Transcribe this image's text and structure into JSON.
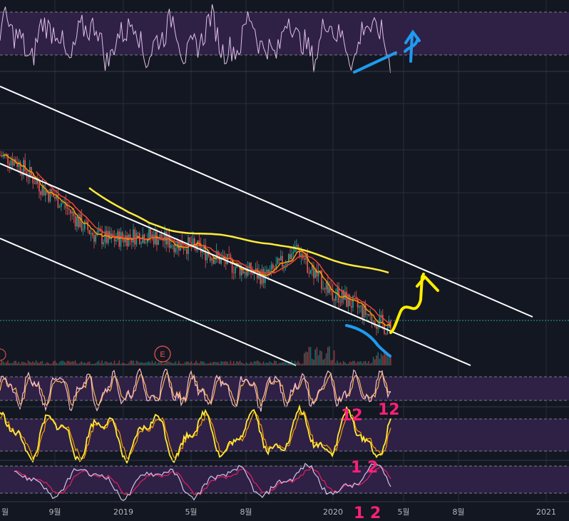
{
  "chart_data": {
    "type": "line",
    "xaxis": {
      "ticks": [
        "월",
        "9월",
        "2019",
        "5월",
        "8월",
        "2020",
        "5월",
        "8월",
        "2021"
      ]
    },
    "colors": {
      "background": "#131722",
      "grid": "#2a2e39",
      "band": "#2e2145",
      "up": "#26a69a",
      "down": "#ef5350",
      "ma_short": "#ff9800",
      "ma_mid": "#f44336",
      "ma_long": "#ffeb3b",
      "channel": "#ffffff",
      "rsi_line": "#e1bee7",
      "stoch_k": "#f8bbd0",
      "stoch_d": "#ffb74d",
      "osc_yellow": "#ffeb3b",
      "osc_orange": "#ff9800",
      "low_k": "#d1c4e9",
      "low_d": "#e91e63",
      "annot_blue": "#1e9bf0",
      "annot_yellow": "#ffee00",
      "annot_pink": "#ff1f7a"
    },
    "earnings_marker": "E",
    "annotations": {
      "pink_labels": [
        "12",
        "12",
        "1 2",
        "1 2"
      ]
    },
    "price_series_trend": [
      88,
      86,
      80,
      74,
      70,
      63,
      58,
      56,
      57,
      58,
      57,
      55,
      54,
      52,
      49,
      46,
      44,
      42,
      47,
      53,
      44,
      38,
      34,
      30,
      26,
      22
    ],
    "ma_long_trend": [
      76,
      71,
      66,
      62,
      60,
      59,
      58,
      57,
      56,
      55,
      53,
      51,
      49,
      47,
      45,
      43
    ]
  }
}
